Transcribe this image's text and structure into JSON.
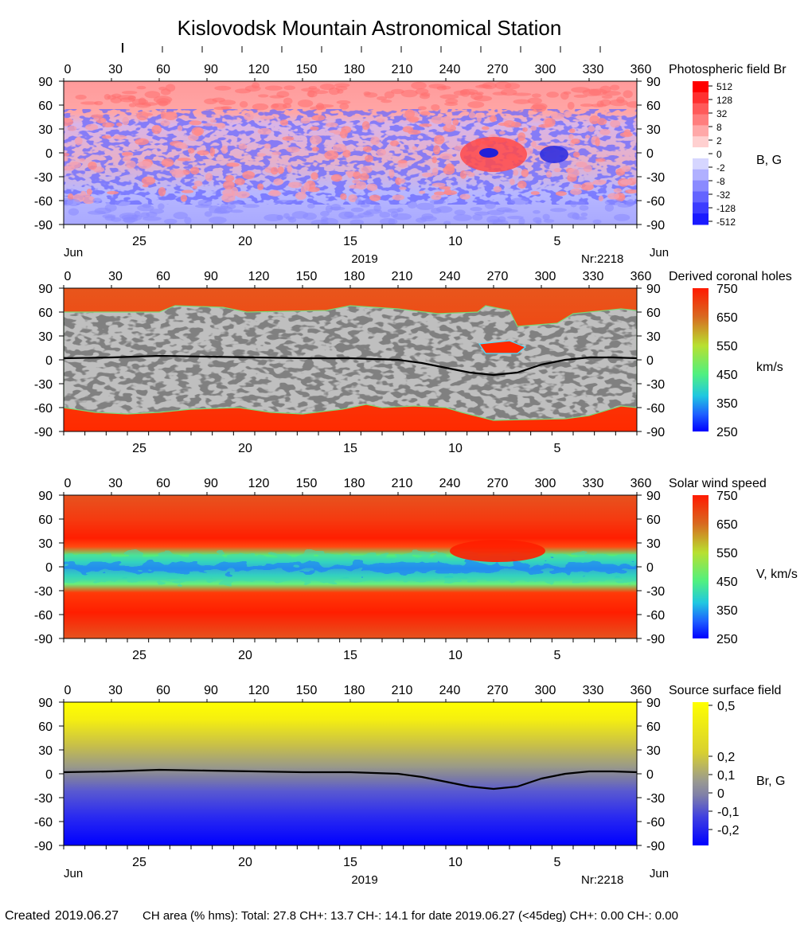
{
  "header": {
    "title": "Kislovodsk Mountain Astronomical Station"
  },
  "footer": {
    "created_label": "Created",
    "created_date": "2019.06.27",
    "stats_text": "CH area (% hms): Total: 27.8 CH+: 13.7   CH-: 14.1 for date 2019.06.27 (<45deg) CH+: 0.00    CH-: 0.00"
  },
  "common_axes": {
    "longitude_ticks": [
      "0",
      "30",
      "60",
      "90",
      "120",
      "150",
      "180",
      "210",
      "240",
      "270",
      "300",
      "330",
      "360"
    ],
    "latitude_ticks": [
      "90",
      "60",
      "30",
      "0",
      "-30",
      "-60",
      "-90"
    ],
    "date_ticks": [
      "25",
      "20",
      "15",
      "10",
      "5"
    ],
    "month_left": "Jun",
    "month_right": "Jun",
    "year": "2019",
    "rotation": "Nr:2218"
  },
  "chart_data": [
    {
      "type": "heatmap",
      "title": "Photospheric field Br",
      "colorbar_label": "B, G",
      "colorbar_ticks": [
        "512",
        "128",
        "32",
        "8",
        "2",
        "0",
        "-2",
        "-8",
        "-32",
        "-128",
        "-512"
      ],
      "x_range": [
        0,
        360
      ],
      "y_range": [
        -90,
        90
      ],
      "colors": {
        "positive": "#ff3030",
        "negative": "#3a3aff",
        "neutral": "#ffffff"
      },
      "features": [
        {
          "name": "active region",
          "longitude": 270,
          "latitude": 6
        },
        {
          "name": "active region",
          "longitude": 308,
          "latitude": 6
        }
      ]
    },
    {
      "type": "heatmap",
      "title": "Derived coronal holes",
      "colorbar_label": "km/s",
      "colorbar_ticks": [
        "750",
        "650",
        "550",
        "450",
        "350",
        "250"
      ],
      "x_range": [
        0,
        360
      ],
      "y_range": [
        -90,
        90
      ],
      "colors": {
        "fast": "#ff2000",
        "slow": "#0000ff",
        "closed_light": "#bfbfbf",
        "closed_dark": "#808080",
        "neutral_line": "#000000"
      },
      "neutral_line": {
        "longitude": [
          0,
          30,
          60,
          90,
          120,
          150,
          180,
          210,
          225,
          240,
          255,
          270,
          285,
          300,
          315,
          330,
          345,
          360
        ],
        "latitude": [
          2,
          3,
          5,
          4,
          3,
          2,
          2,
          0,
          -4,
          -10,
          -16,
          -19,
          -16,
          -6,
          0,
          3,
          3,
          2
        ]
      }
    },
    {
      "type": "heatmap",
      "title": "Solar wind speed",
      "colorbar_label": "V, km/s",
      "colorbar_ticks": [
        "750",
        "650",
        "550",
        "450",
        "350",
        "250"
      ],
      "x_range": [
        0,
        360
      ],
      "y_range": [
        -90,
        90
      ],
      "colors": {
        "fast": "#ff2000",
        "slow": "#0000ff",
        "background": "#e0501e"
      }
    },
    {
      "type": "heatmap",
      "title": "Source surface field",
      "colorbar_label": "Br, G",
      "colorbar_ticks": [
        "0,5",
        "0,2",
        "0,1",
        "0",
        "-0,1",
        "-0,2"
      ],
      "x_range": [
        0,
        360
      ],
      "y_range": [
        -90,
        90
      ],
      "colors": {
        "positive": "#ffff00",
        "negative": "#0000ff",
        "neutral_line": "#000000"
      },
      "neutral_line": {
        "longitude": [
          0,
          30,
          60,
          90,
          120,
          150,
          180,
          210,
          225,
          240,
          255,
          270,
          285,
          300,
          315,
          330,
          345,
          360
        ],
        "latitude": [
          2,
          3,
          5,
          4,
          3,
          2,
          2,
          0,
          -4,
          -10,
          -16,
          -19,
          -16,
          -6,
          0,
          3,
          3,
          2
        ]
      }
    }
  ]
}
